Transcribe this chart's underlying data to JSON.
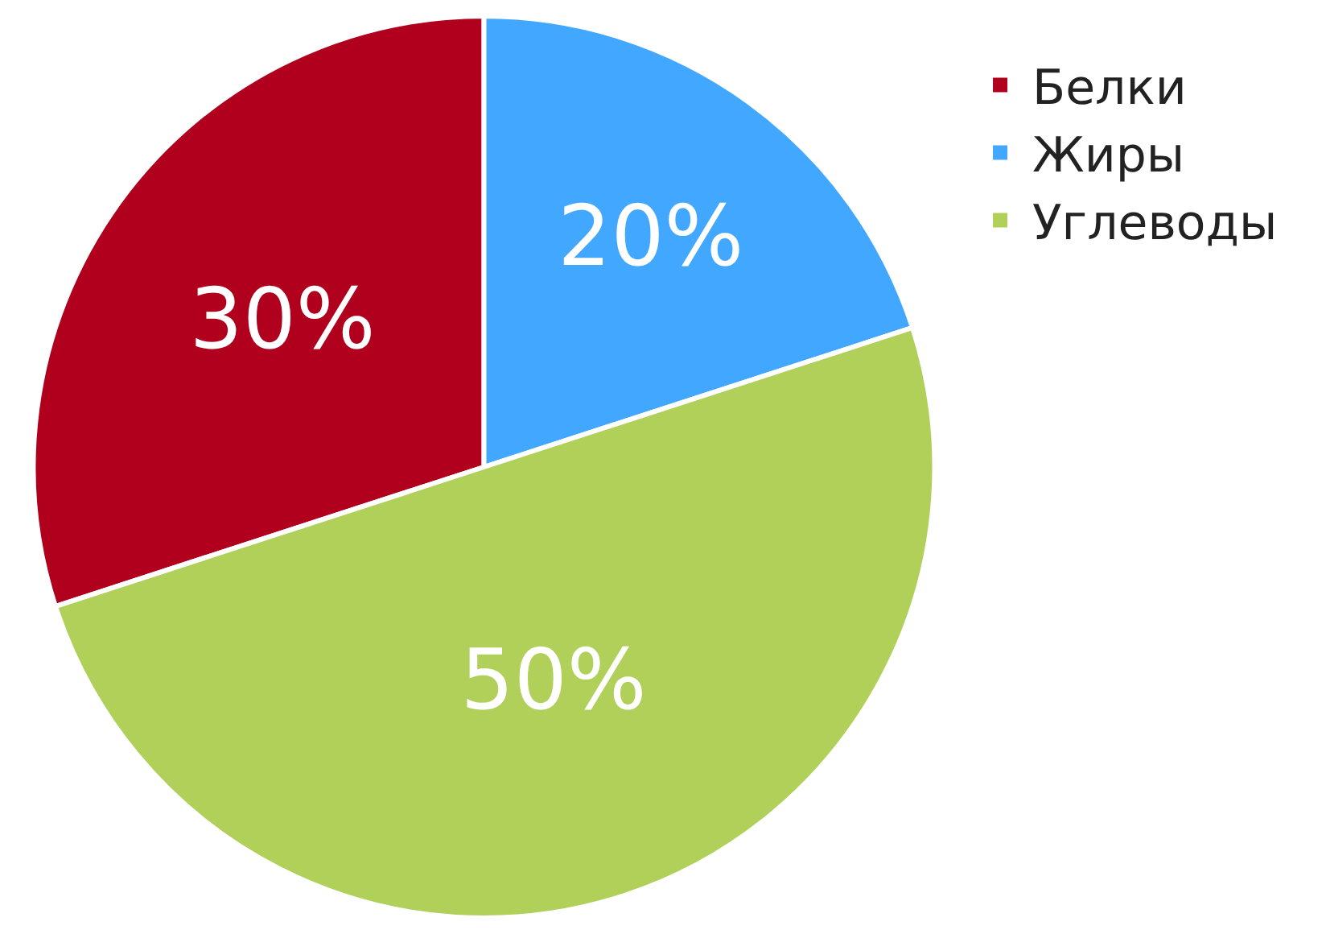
{
  "chart_data": {
    "type": "pie",
    "categories": [
      "Белки",
      "Жиры",
      "Углеводы"
    ],
    "values": [
      30,
      20,
      50
    ],
    "colors": [
      "#b0001e",
      "#42a8ff",
      "#b0d05a"
    ],
    "value_labels": [
      "30%",
      "20%",
      "50%"
    ],
    "legend": "top right"
  }
}
